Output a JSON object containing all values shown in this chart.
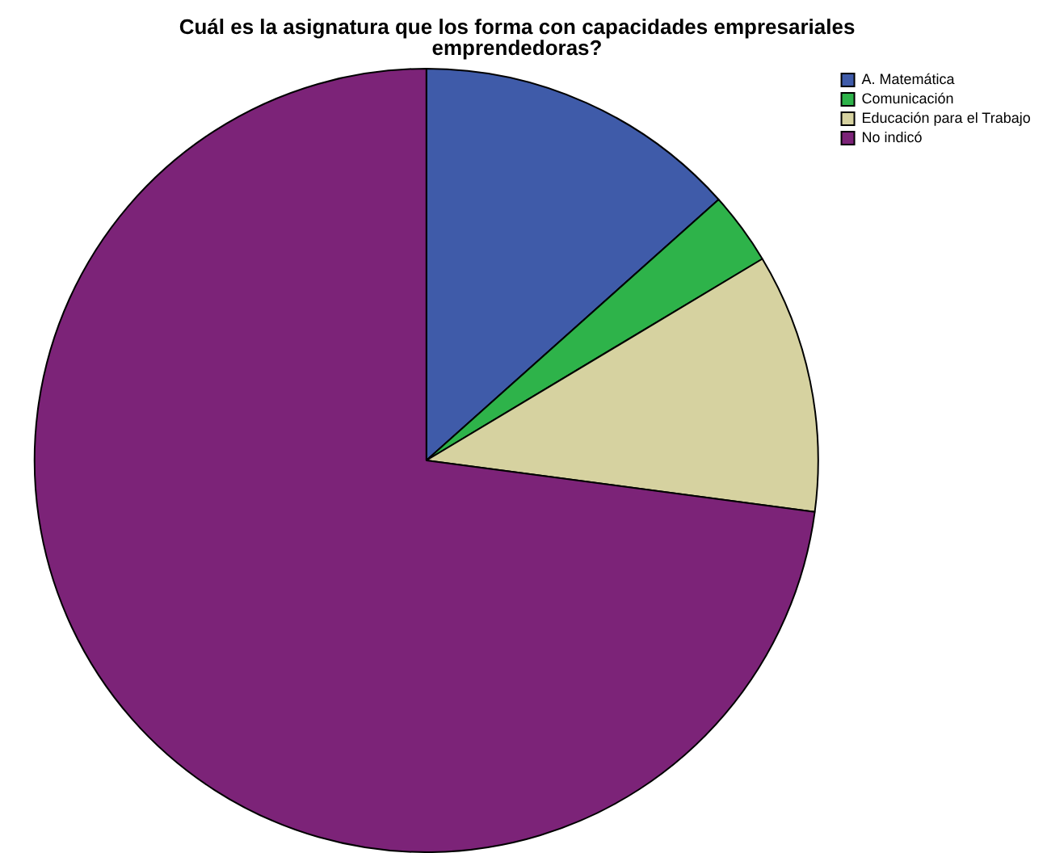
{
  "chart_data": {
    "type": "pie",
    "title": "Cuál es la asignatura que los forma con capacidades empresariales emprendedoras?",
    "categories": [
      "A. Matemática",
      "Comunicación",
      "Educación para el Trabajo",
      "No indicó"
    ],
    "values": [
      13.4,
      3.0,
      10.7,
      72.9
    ],
    "colors": [
      "#3f5ba9",
      "#2eb34a",
      "#d6d2a0",
      "#7c2378"
    ],
    "legend": "top right"
  }
}
